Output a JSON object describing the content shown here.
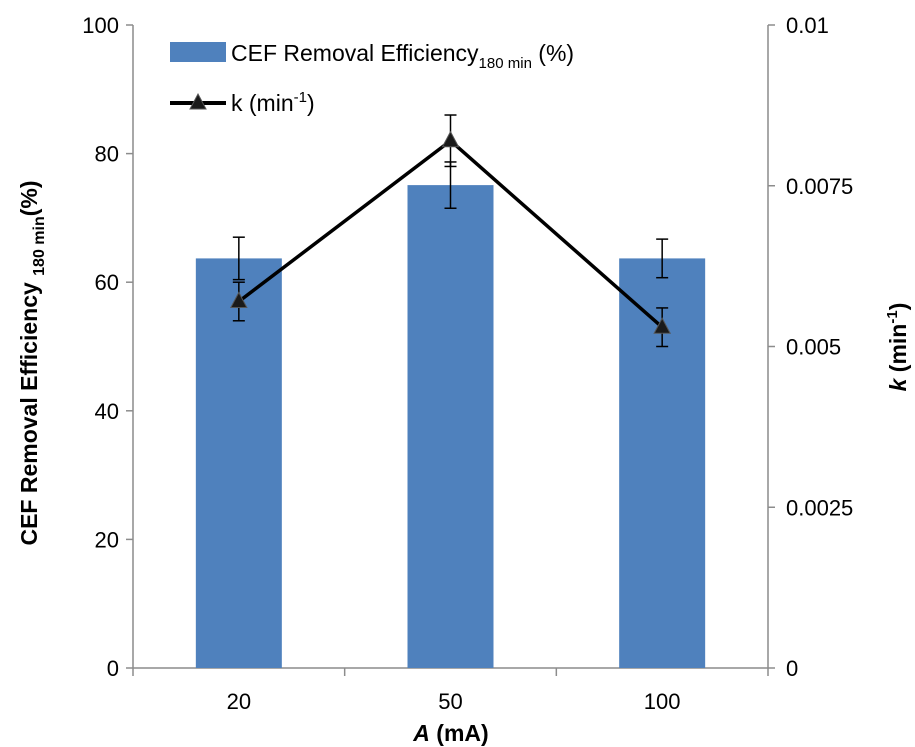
{
  "chart_data": {
    "type": "bar",
    "categories": [
      "20",
      "50",
      "100"
    ],
    "xlabel": {
      "italic": "A",
      "rest": " (mA)"
    },
    "y_left": {
      "label_main": "CEF Removal Efficiency ",
      "label_sub": "180 min",
      "label_tail": "(%)",
      "lim": [
        0,
        100
      ],
      "ticks": [
        "0",
        "20",
        "40",
        "60",
        "80",
        "100"
      ]
    },
    "y_right": {
      "label_italic": "k",
      "label_main": " (min",
      "label_sup": "-1",
      "label_tail": ")",
      "lim": [
        0,
        0.01
      ],
      "ticks": [
        "0",
        "0.0025",
        "0.005",
        "0.0075",
        "0.01"
      ]
    },
    "series": [
      {
        "name": "CEF Removal Efficiency",
        "name_sub": "180 min",
        "name_tail": " (%)",
        "type": "bar",
        "axis": "left",
        "color": "#4f81bd",
        "values": [
          63.7,
          75.1,
          63.7
        ],
        "errors": [
          3.3,
          3.6,
          3.0
        ]
      },
      {
        "name": "k (min",
        "name_sup": "-1",
        "name_tail": ")",
        "type": "line",
        "axis": "right",
        "marker": "triangle",
        "color": "#000000",
        "values": [
          0.0057,
          0.0082,
          0.0053
        ],
        "errors": [
          0.0003,
          0.0004,
          0.0003
        ]
      }
    ],
    "grid": false,
    "legend_position": "top-left"
  }
}
